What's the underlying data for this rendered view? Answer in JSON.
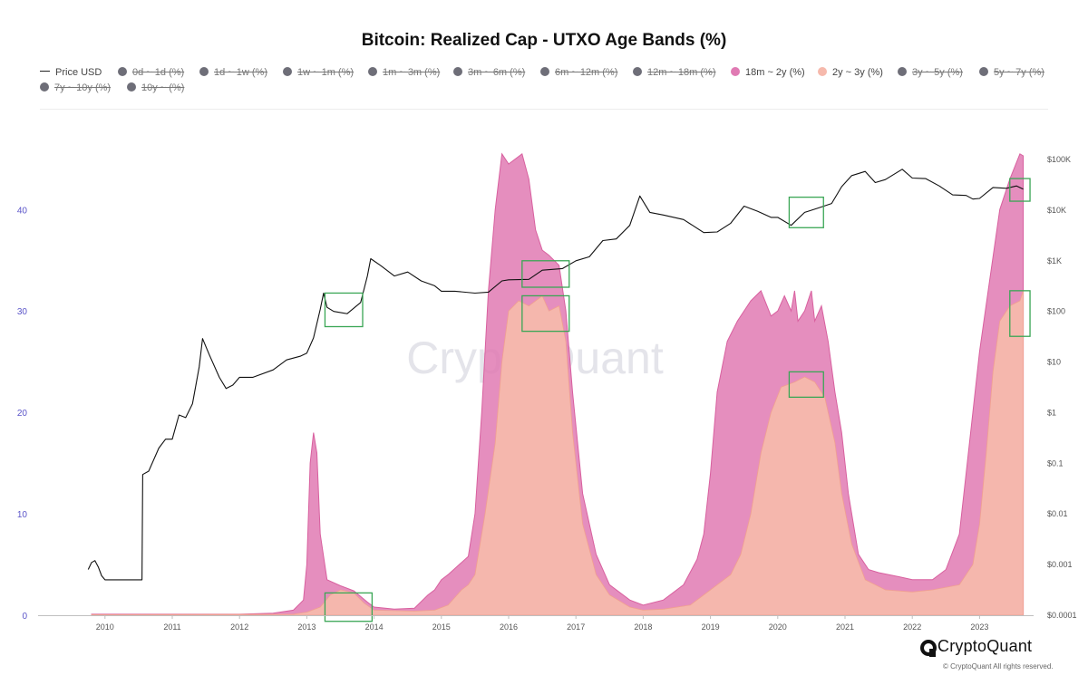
{
  "title": "Bitcoin: Realized Cap - UTXO Age Bands (%)",
  "watermark": "CryptoQuant",
  "brand": {
    "name": "CryptoQuant",
    "copyright": "© CryptoQuant All rights reserved."
  },
  "legend": [
    {
      "label": "Price USD",
      "marker": "line",
      "color": "#222222",
      "active": true
    },
    {
      "label": "0d ~ 1d (%)",
      "marker": "dot",
      "color": "#6e6e78",
      "active": false
    },
    {
      "label": "1d ~ 1w (%)",
      "marker": "dot",
      "color": "#6e6e78",
      "active": false
    },
    {
      "label": "1w ~ 1m (%)",
      "marker": "dot",
      "color": "#6e6e78",
      "active": false
    },
    {
      "label": "1m ~ 3m (%)",
      "marker": "dot",
      "color": "#6e6e78",
      "active": false
    },
    {
      "label": "3m ~ 6m (%)",
      "marker": "dot",
      "color": "#6e6e78",
      "active": false
    },
    {
      "label": "6m ~ 12m (%)",
      "marker": "dot",
      "color": "#6e6e78",
      "active": false
    },
    {
      "label": "12m ~ 18m (%)",
      "marker": "dot",
      "color": "#6e6e78",
      "active": false
    },
    {
      "label": "18m ~ 2y (%)",
      "marker": "dot",
      "color": "#e07ab3",
      "active": true
    },
    {
      "label": "2y ~ 3y (%)",
      "marker": "dot",
      "color": "#f6b9ac",
      "active": true
    },
    {
      "label": "3y ~ 5y (%)",
      "marker": "dot",
      "color": "#6e6e78",
      "active": false
    },
    {
      "label": "5y ~ 7y (%)",
      "marker": "dot",
      "color": "#6e6e78",
      "active": false
    },
    {
      "label": "7y ~ 10y (%)",
      "marker": "dot",
      "color": "#6e6e78",
      "active": false
    },
    {
      "label": "10y ~ (%)",
      "marker": "dot",
      "color": "#6e6e78",
      "active": false
    }
  ],
  "chart_data": {
    "type": "area",
    "title": "Bitcoin: Realized Cap - UTXO Age Bands (%)",
    "x_ticks": [
      "2010",
      "2011",
      "2012",
      "2013",
      "2014",
      "2015",
      "2016",
      "2017",
      "2018",
      "2019",
      "2020",
      "2021",
      "2022",
      "2023"
    ],
    "y_left": {
      "ticks": [
        0,
        10,
        20,
        30,
        40
      ],
      "range": [
        0,
        45.3
      ],
      "color": "#5b55c9"
    },
    "y_right": {
      "scale": "log",
      "range": [
        0.0001,
        100000
      ],
      "ticks": [
        "$0.0001",
        "$0.001",
        "$0.01",
        "$0.1",
        "$1",
        "$10",
        "$100",
        "$1K",
        "$10K",
        "$100K"
      ]
    },
    "grid": false,
    "legend_position": "top",
    "series": [
      {
        "name": "18m ~ 2y (%)",
        "kind": "stacked-area-top",
        "axis": "left",
        "color": "#e07ab3",
        "points": [
          [
            2009.8,
            0.1
          ],
          [
            2012.0,
            0.1
          ],
          [
            2012.5,
            0.2
          ],
          [
            2012.8,
            0.5
          ],
          [
            2012.95,
            1.5
          ],
          [
            2013.0,
            5
          ],
          [
            2013.05,
            15
          ],
          [
            2013.1,
            18
          ],
          [
            2013.15,
            16
          ],
          [
            2013.2,
            8
          ],
          [
            2013.3,
            3.5
          ],
          [
            2013.5,
            2.9
          ],
          [
            2013.7,
            2.4
          ],
          [
            2013.9,
            1.3
          ],
          [
            2014.0,
            0.8
          ],
          [
            2014.3,
            0.6
          ],
          [
            2014.6,
            0.7
          ],
          [
            2014.8,
            2.0
          ],
          [
            2014.9,
            2.5
          ],
          [
            2015.0,
            3.5
          ],
          [
            2015.1,
            4.0
          ],
          [
            2015.4,
            5.8
          ],
          [
            2015.5,
            10
          ],
          [
            2015.6,
            20
          ],
          [
            2015.7,
            32
          ],
          [
            2015.8,
            40
          ],
          [
            2015.9,
            45.5
          ],
          [
            2016.0,
            44.5
          ],
          [
            2016.2,
            45.5
          ],
          [
            2016.3,
            43
          ],
          [
            2016.4,
            38
          ],
          [
            2016.5,
            36
          ],
          [
            2016.6,
            35.5
          ],
          [
            2016.75,
            34.5
          ],
          [
            2016.85,
            30
          ],
          [
            2016.95,
            22
          ],
          [
            2017.1,
            12
          ],
          [
            2017.3,
            6
          ],
          [
            2017.5,
            3.0
          ],
          [
            2017.8,
            1.5
          ],
          [
            2018.0,
            1.0
          ],
          [
            2018.3,
            1.5
          ],
          [
            2018.6,
            3.0
          ],
          [
            2018.8,
            5.5
          ],
          [
            2018.9,
            8
          ],
          [
            2019.0,
            14
          ],
          [
            2019.1,
            22
          ],
          [
            2019.25,
            27
          ],
          [
            2019.4,
            29
          ],
          [
            2019.6,
            31
          ],
          [
            2019.75,
            32
          ],
          [
            2019.9,
            29.5
          ],
          [
            2020.0,
            30
          ],
          [
            2020.1,
            31.5
          ],
          [
            2020.2,
            30
          ],
          [
            2020.25,
            32
          ],
          [
            2020.3,
            29
          ],
          [
            2020.4,
            30
          ],
          [
            2020.5,
            32
          ],
          [
            2020.55,
            29
          ],
          [
            2020.65,
            30.5
          ],
          [
            2020.75,
            27
          ],
          [
            2020.85,
            22
          ],
          [
            2020.95,
            18
          ],
          [
            2021.05,
            12
          ],
          [
            2021.2,
            6
          ],
          [
            2021.35,
            4.5
          ],
          [
            2021.5,
            4.2
          ],
          [
            2021.8,
            3.8
          ],
          [
            2022.0,
            3.5
          ],
          [
            2022.3,
            3.5
          ],
          [
            2022.5,
            4.5
          ],
          [
            2022.7,
            8
          ],
          [
            2022.8,
            14
          ],
          [
            2022.9,
            20
          ],
          [
            2023.0,
            26
          ],
          [
            2023.15,
            33
          ],
          [
            2023.3,
            40
          ],
          [
            2023.45,
            43
          ],
          [
            2023.6,
            45.5
          ],
          [
            2023.65,
            45.3
          ]
        ]
      },
      {
        "name": "2y ~ 3y (%)",
        "kind": "stacked-area-bottom",
        "axis": "left",
        "color": "#f6b9ac",
        "points": [
          [
            2009.8,
            0.05
          ],
          [
            2012.8,
            0.1
          ],
          [
            2013.0,
            0.3
          ],
          [
            2013.2,
            0.8
          ],
          [
            2013.35,
            2.0
          ],
          [
            2013.5,
            2.5
          ],
          [
            2013.7,
            2.2
          ],
          [
            2013.85,
            1.2
          ],
          [
            2014.0,
            0.5
          ],
          [
            2014.6,
            0.4
          ],
          [
            2014.9,
            0.5
          ],
          [
            2015.1,
            1.0
          ],
          [
            2015.3,
            2.5
          ],
          [
            2015.4,
            3.0
          ],
          [
            2015.5,
            4
          ],
          [
            2015.65,
            10
          ],
          [
            2015.8,
            17
          ],
          [
            2015.9,
            25
          ],
          [
            2016.0,
            30
          ],
          [
            2016.15,
            31
          ],
          [
            2016.3,
            30.5
          ],
          [
            2016.5,
            31.5
          ],
          [
            2016.6,
            30
          ],
          [
            2016.75,
            30.5
          ],
          [
            2016.85,
            27
          ],
          [
            2016.95,
            18
          ],
          [
            2017.1,
            9
          ],
          [
            2017.3,
            4
          ],
          [
            2017.5,
            2.0
          ],
          [
            2017.8,
            0.8
          ],
          [
            2018.0,
            0.5
          ],
          [
            2018.3,
            0.6
          ],
          [
            2018.7,
            1.0
          ],
          [
            2019.0,
            2.5
          ],
          [
            2019.3,
            4.0
          ],
          [
            2019.45,
            6
          ],
          [
            2019.6,
            10
          ],
          [
            2019.75,
            16
          ],
          [
            2019.9,
            20
          ],
          [
            2020.05,
            22.5
          ],
          [
            2020.25,
            23
          ],
          [
            2020.4,
            23.5
          ],
          [
            2020.55,
            23
          ],
          [
            2020.7,
            21.5
          ],
          [
            2020.85,
            17
          ],
          [
            2020.95,
            12
          ],
          [
            2021.1,
            7
          ],
          [
            2021.3,
            3.5
          ],
          [
            2021.6,
            2.5
          ],
          [
            2022.0,
            2.3
          ],
          [
            2022.3,
            2.5
          ],
          [
            2022.7,
            3.0
          ],
          [
            2022.9,
            5
          ],
          [
            2023.0,
            9
          ],
          [
            2023.1,
            16
          ],
          [
            2023.2,
            24
          ],
          [
            2023.3,
            29
          ],
          [
            2023.45,
            30.5
          ],
          [
            2023.6,
            31
          ],
          [
            2023.65,
            32
          ]
        ]
      },
      {
        "name": "Price USD",
        "kind": "line",
        "axis": "right",
        "color": "#111111",
        "points": [
          [
            2009.75,
            0.0008
          ],
          [
            2009.8,
            0.0011
          ],
          [
            2009.85,
            0.0012
          ],
          [
            2009.9,
            0.0009
          ],
          [
            2009.95,
            0.0006
          ],
          [
            2010.0,
            0.0005
          ],
          [
            2010.55,
            0.0005
          ],
          [
            2010.56,
            0.06
          ],
          [
            2010.65,
            0.07
          ],
          [
            2010.8,
            0.2
          ],
          [
            2010.9,
            0.3
          ],
          [
            2011.0,
            0.3
          ],
          [
            2011.1,
            0.9
          ],
          [
            2011.2,
            0.8
          ],
          [
            2011.3,
            1.5
          ],
          [
            2011.4,
            8
          ],
          [
            2011.45,
            29
          ],
          [
            2011.55,
            14
          ],
          [
            2011.7,
            5
          ],
          [
            2011.8,
            3
          ],
          [
            2011.9,
            3.5
          ],
          [
            2012.0,
            5
          ],
          [
            2012.2,
            5
          ],
          [
            2012.5,
            7
          ],
          [
            2012.7,
            11
          ],
          [
            2012.9,
            13
          ],
          [
            2013.0,
            15
          ],
          [
            2013.1,
            30
          ],
          [
            2013.2,
            110
          ],
          [
            2013.25,
            230
          ],
          [
            2013.3,
            120
          ],
          [
            2013.4,
            100
          ],
          [
            2013.6,
            90
          ],
          [
            2013.8,
            150
          ],
          [
            2013.9,
            500
          ],
          [
            2013.95,
            1100
          ],
          [
            2014.1,
            800
          ],
          [
            2014.3,
            500
          ],
          [
            2014.5,
            600
          ],
          [
            2014.7,
            400
          ],
          [
            2014.9,
            320
          ],
          [
            2015.0,
            250
          ],
          [
            2015.2,
            250
          ],
          [
            2015.5,
            230
          ],
          [
            2015.7,
            240
          ],
          [
            2015.9,
            400
          ],
          [
            2016.0,
            420
          ],
          [
            2016.3,
            430
          ],
          [
            2016.5,
            650
          ],
          [
            2016.8,
            700
          ],
          [
            2017.0,
            1000
          ],
          [
            2017.2,
            1200
          ],
          [
            2017.4,
            2500
          ],
          [
            2017.6,
            2700
          ],
          [
            2017.8,
            5000
          ],
          [
            2017.95,
            19000
          ],
          [
            2018.1,
            9000
          ],
          [
            2018.3,
            8000
          ],
          [
            2018.6,
            6500
          ],
          [
            2018.9,
            3600
          ],
          [
            2019.1,
            3700
          ],
          [
            2019.3,
            5500
          ],
          [
            2019.5,
            12000
          ],
          [
            2019.7,
            9500
          ],
          [
            2019.9,
            7200
          ],
          [
            2020.0,
            7200
          ],
          [
            2020.2,
            5000
          ],
          [
            2020.4,
            9000
          ],
          [
            2020.6,
            11000
          ],
          [
            2020.8,
            13500
          ],
          [
            2020.95,
            29000
          ],
          [
            2021.1,
            48000
          ],
          [
            2021.3,
            58000
          ],
          [
            2021.45,
            35000
          ],
          [
            2021.6,
            40000
          ],
          [
            2021.85,
            64000
          ],
          [
            2022.0,
            43000
          ],
          [
            2022.2,
            42000
          ],
          [
            2022.4,
            30000
          ],
          [
            2022.6,
            20000
          ],
          [
            2022.8,
            19500
          ],
          [
            2022.9,
            16500
          ],
          [
            2023.0,
            17000
          ],
          [
            2023.2,
            28000
          ],
          [
            2023.4,
            27000
          ],
          [
            2023.55,
            30000
          ],
          [
            2023.65,
            26000
          ]
        ]
      }
    ],
    "highlight_boxes": [
      {
        "label": "",
        "color": "#3aa655",
        "x": [
          2013.27,
          2013.83
        ],
        "price": [
          50,
          230
        ]
      },
      {
        "label": "",
        "color": "#3aa655",
        "x": [
          2013.27,
          2013.97
        ],
        "pct": [
          -0.6,
          2.2
        ]
      },
      {
        "label": "",
        "color": "#3aa655",
        "x": [
          2016.2,
          2016.9
        ],
        "price": [
          300,
          1000
        ]
      },
      {
        "label": "",
        "color": "#3aa655",
        "x": [
          2016.2,
          2016.9
        ],
        "pct": [
          28,
          31.5
        ]
      },
      {
        "label": "",
        "color": "#3aa655",
        "x": [
          2020.17,
          2020.68
        ],
        "price": [
          4500,
          18000
        ]
      },
      {
        "label": "",
        "color": "#3aa655",
        "x": [
          2020.17,
          2020.68
        ],
        "pct": [
          21.5,
          24
        ]
      },
      {
        "label": "",
        "color": "#3aa655",
        "x": [
          2023.45,
          2023.75
        ],
        "price": [
          15000,
          42000
        ]
      },
      {
        "label": "",
        "color": "#3aa655",
        "x": [
          2023.45,
          2023.75
        ],
        "pct": [
          27.5,
          32
        ]
      }
    ]
  }
}
